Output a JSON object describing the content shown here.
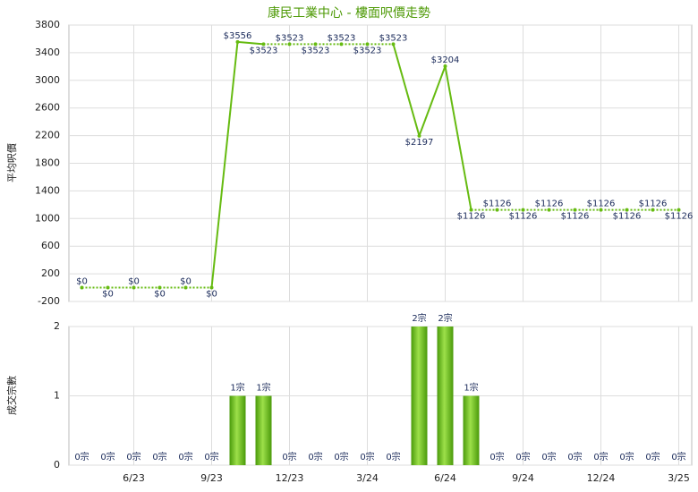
{
  "chart_data": [
    {
      "type": "line",
      "title": "康民工業中心 - 樓面呎價走勢",
      "y_label": "平均呎價",
      "categories": [
        null,
        null,
        "6/23",
        null,
        null,
        "9/23",
        null,
        null,
        "12/23",
        null,
        null,
        "3/24",
        null,
        null,
        "6/24",
        null,
        null,
        "9/24",
        null,
        null,
        "12/24",
        null,
        null,
        "3/25"
      ],
      "series": [
        {
          "name": "平均呎價",
          "color": "#66bb11",
          "values": [
            0,
            0,
            0,
            0,
            0,
            0,
            3556,
            3523,
            3523,
            3523,
            3523,
            3523,
            3523,
            2197,
            3204,
            1126,
            1126,
            1126,
            1126,
            1126,
            1126,
            1126,
            1126,
            1126
          ],
          "value_labels": [
            "$0",
            "$0",
            "$0",
            "$0",
            "$0",
            "$0",
            "$3556",
            "$3523",
            "$3523",
            "$3523",
            "$3523",
            "$3523",
            "$3523",
            "$2197",
            "$3204",
            "$1126",
            "$1126",
            "$1126",
            "$1126",
            "$1126",
            "$1126",
            "$1126",
            "$1126",
            "$1126"
          ]
        }
      ],
      "ylim": [
        -200,
        3800
      ],
      "yticks": [
        -200,
        200,
        600,
        1000,
        1400,
        1800,
        2200,
        2600,
        3000,
        3400,
        3800
      ],
      "grid": true
    },
    {
      "type": "bar",
      "y_label": "成交宗數",
      "series": [
        {
          "name": "成交宗數",
          "color": "#66bb11",
          "values": [
            0,
            0,
            0,
            0,
            0,
            0,
            1,
            1,
            0,
            0,
            0,
            0,
            0,
            2,
            2,
            1,
            0,
            0,
            0,
            0,
            0,
            0,
            0,
            0
          ],
          "value_labels": [
            "0宗",
            "0宗",
            "0宗",
            "0宗",
            "0宗",
            "0宗",
            "1宗",
            "1宗",
            "0宗",
            "0宗",
            "0宗",
            "0宗",
            "0宗",
            "2宗",
            "2宗",
            "1宗",
            "0宗",
            "0宗",
            "0宗",
            "0宗",
            "0宗",
            "0宗",
            "0宗",
            "0宗"
          ]
        }
      ],
      "ylim": [
        0,
        2
      ],
      "yticks": [
        0,
        1,
        2
      ],
      "grid": true
    }
  ]
}
